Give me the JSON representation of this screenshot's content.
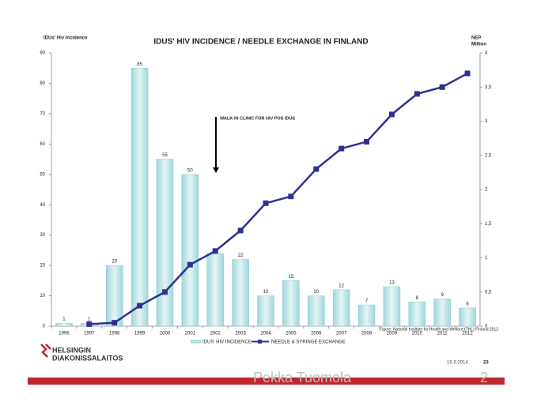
{
  "chart_data": {
    "type": "bar",
    "title": "IDUS' HIV INCIDENCE / NEEDLE EXCHANGE IN FINLAND",
    "y_label": "IDUs' Hiv Incidence",
    "y2_label": [
      "NEP",
      "Million"
    ],
    "annotation": "WALK-IN CLINIC FOR HIV POS IDUS",
    "source": "Figure: National Institute for Health and Welfare (THL) Finland 2012",
    "categories": [
      "1996",
      "1997",
      "1998",
      "1999",
      "2000",
      "2001",
      "2002",
      "2003",
      "2004",
      "2005",
      "2006",
      "2007",
      "2008",
      "2009",
      "2010",
      "2011",
      "2012"
    ],
    "series": [
      {
        "name": "IDUS' HIV INCIDENCE",
        "type": "bar",
        "color": "#bfe5e7",
        "values": [
          1,
          1,
          20,
          85,
          55,
          50,
          24,
          22,
          10,
          15,
          10,
          12,
          7,
          13,
          8,
          9,
          6
        ],
        "value_labels": [
          "1",
          "1",
          "20",
          "85",
          "55",
          "50",
          null,
          "22",
          "10",
          "15",
          "10",
          "12",
          "7",
          "13",
          "8",
          "9",
          "6"
        ]
      },
      {
        "name": "NEEDLE & SYRINGE EXCHANGE",
        "type": "line",
        "axis": "y2",
        "color": "#2e3192",
        "values": [
          null,
          0.03,
          0.05,
          0.3,
          0.5,
          0.9,
          1.1,
          1.4,
          1.8,
          1.9,
          2.3,
          2.6,
          2.7,
          3.1,
          3.4,
          3.5,
          3.7
        ]
      }
    ],
    "ylim": [
      0,
      90
    ],
    "yticks": [
      0,
      10,
      20,
      30,
      40,
      50,
      60,
      70,
      80,
      90
    ],
    "y2lim": [
      0,
      4
    ],
    "y2ticks": [
      0,
      {
        "value": 0.5,
        "label": "0,5"
      },
      1,
      {
        "value": 1.5,
        "label": "1,5"
      },
      2,
      {
        "value": 2.5,
        "label": "2,5"
      },
      3,
      {
        "value": 3.5,
        "label": "3,5"
      },
      4
    ],
    "grid": false
  },
  "logo": [
    "HELSINGIN",
    "DIAKONISSALAITOS"
  ],
  "date": "16.9.2014",
  "slide_number": "23",
  "presenter": "Pekka Tuomola",
  "page": "2"
}
